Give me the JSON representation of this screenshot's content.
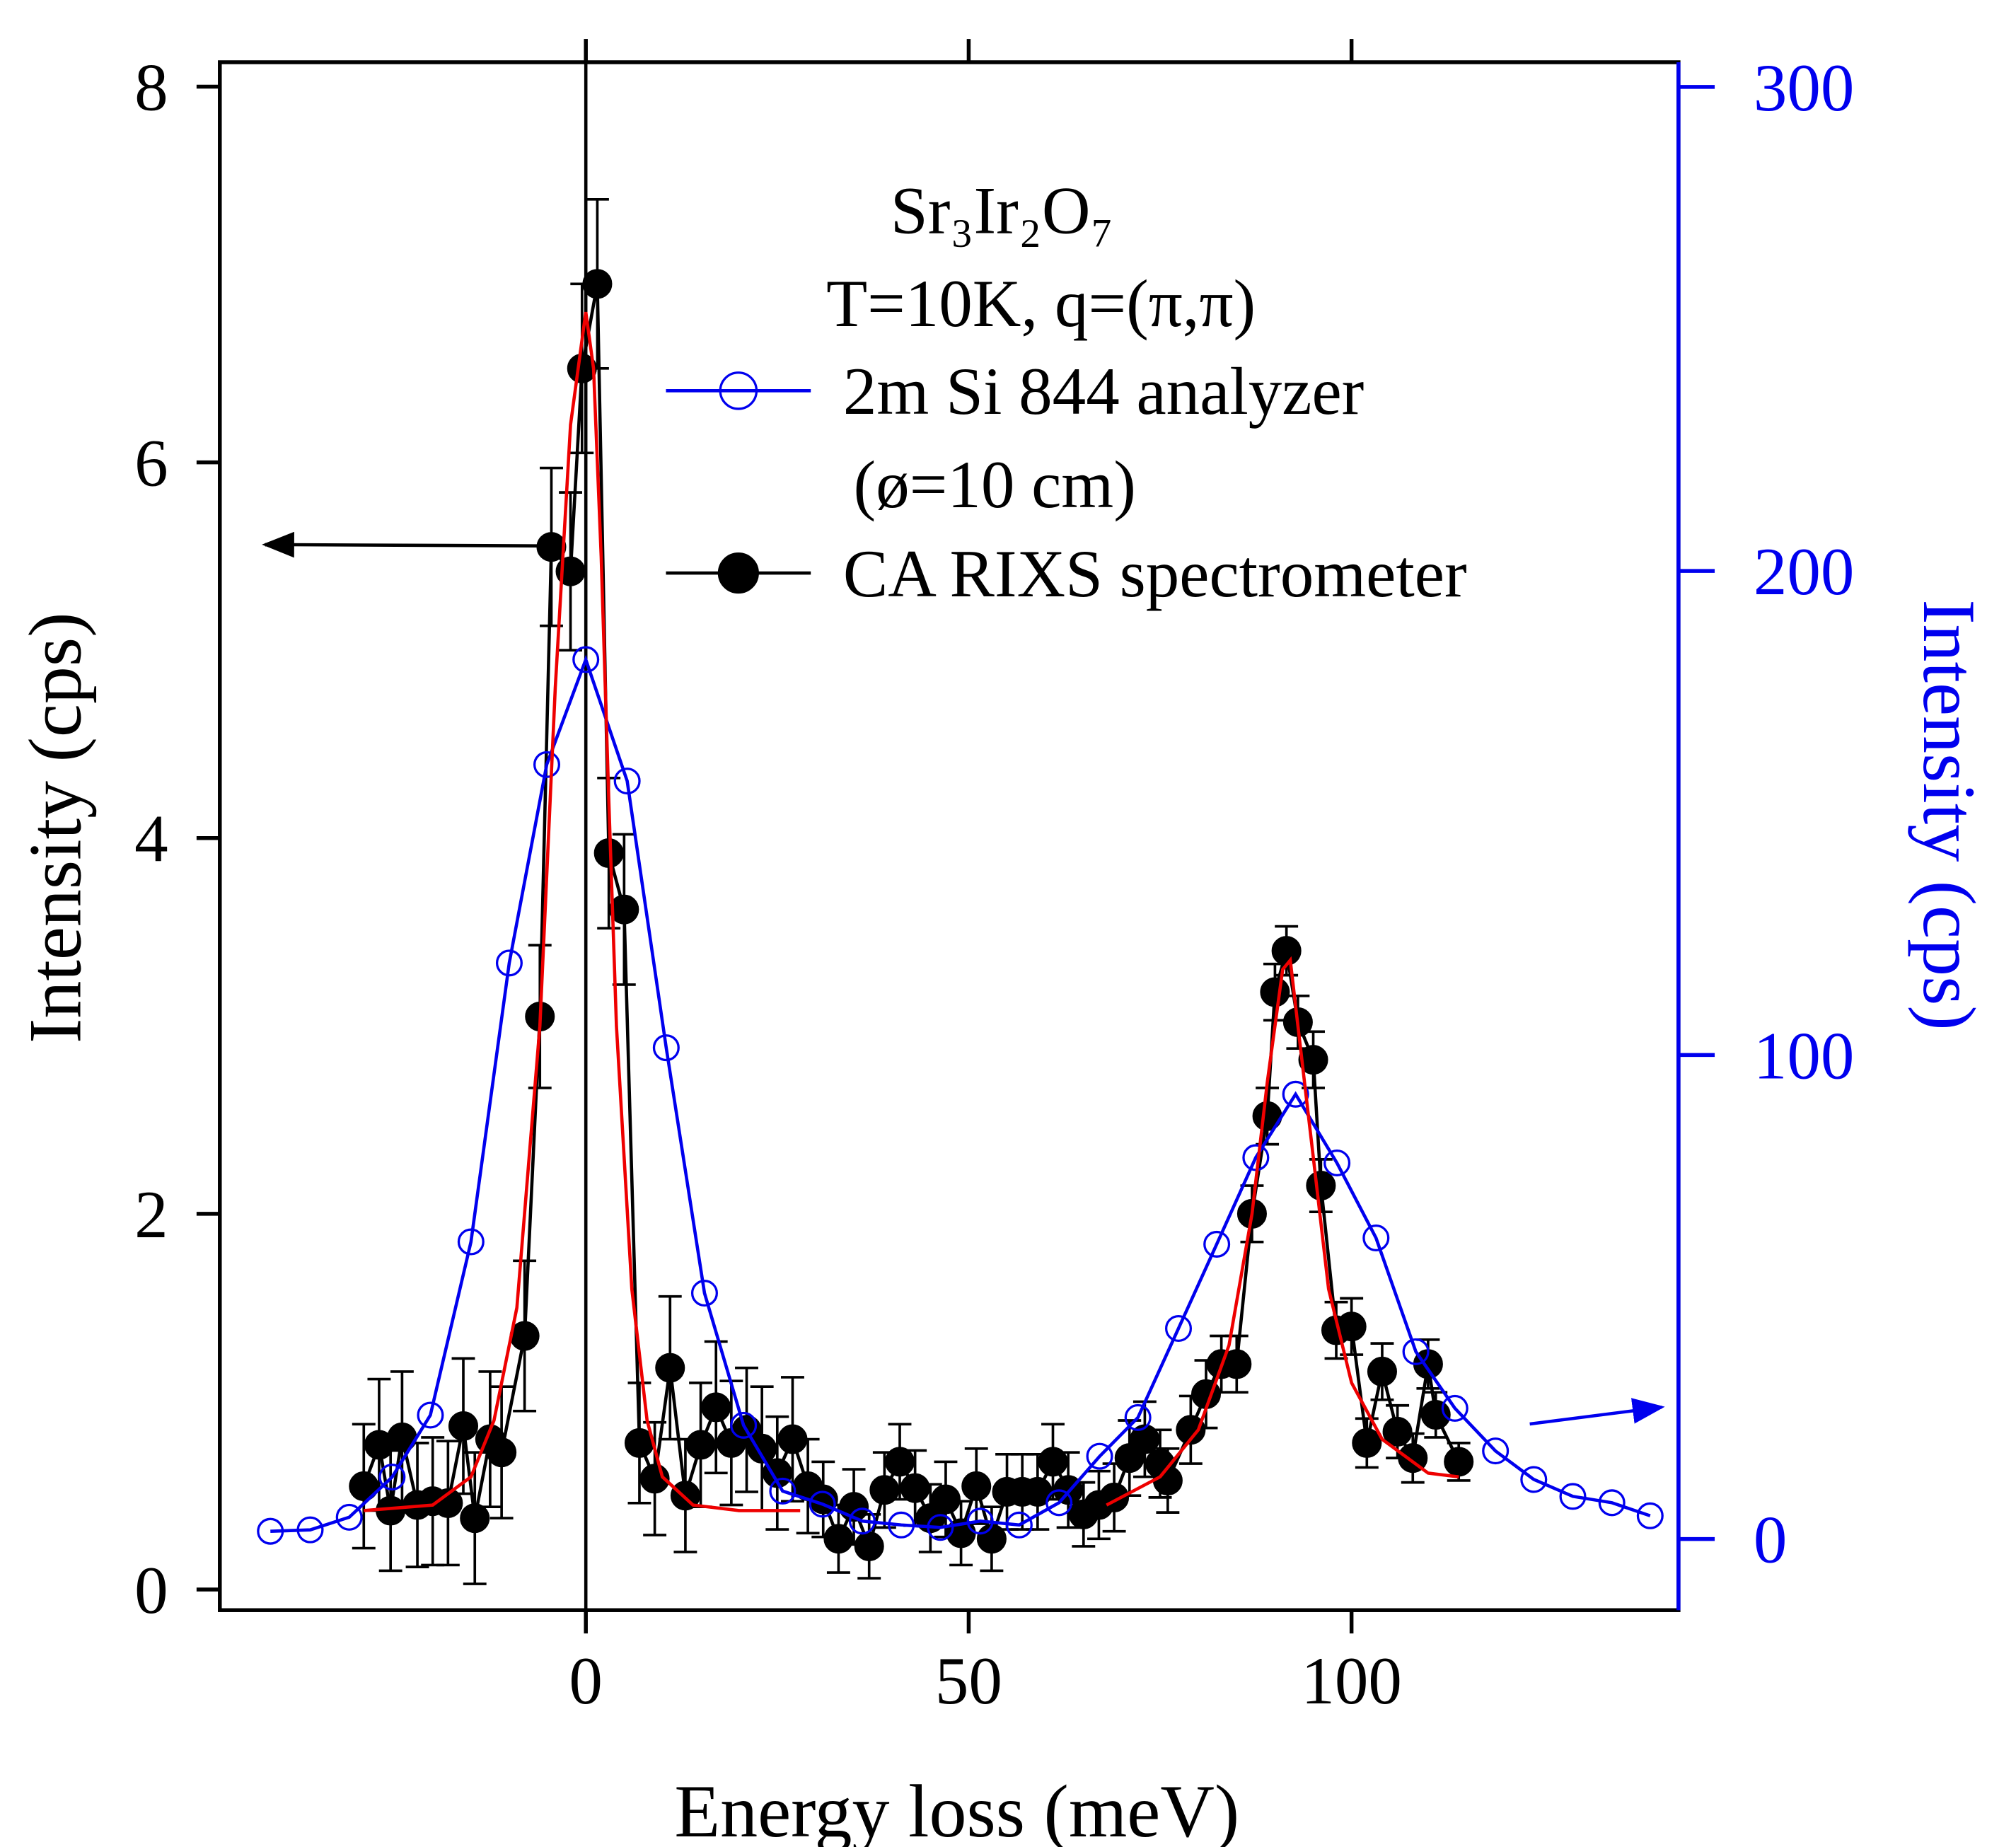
{
  "chart_data": {
    "type": "line",
    "title": "Sr₃Ir₂O₇",
    "subtitle": "T=10K, q=(π,π)",
    "xlabel": "Energy loss (meV)",
    "ylabel": "Intensity (cps)",
    "y2label": "Intensity (cps)",
    "xlim": [
      -47.8,
      142.7
    ],
    "ylim": [
      -0.11,
      8.13
    ],
    "y2lim": [
      -14.7,
      305.1
    ],
    "xticks": [
      0,
      50,
      100
    ],
    "yticks": [
      0,
      2,
      4,
      6,
      8
    ],
    "y2ticks": [
      0,
      100,
      200,
      300
    ],
    "vlines": [
      0
    ],
    "annotations": [
      "(ø=10 cm)"
    ],
    "series": [
      {
        "name": "2m Si 844 analyzer",
        "color": "#0000ee",
        "axis": "y2",
        "marker": "open",
        "x": [
          -41.2,
          -36,
          -30.9,
          -25.3,
          -20.3,
          -15,
          -10,
          -5.1,
          0,
          5.4,
          10.5,
          15.5,
          20.6,
          25.7,
          30.9,
          36.1,
          41.2,
          46.3,
          51.5,
          56.6,
          61.8,
          67.1,
          72.1,
          77.4,
          82.4,
          87.5,
          92.7,
          98.1,
          103.2,
          108.4,
          113.5,
          118.8,
          123.8,
          128.9,
          134,
          139
        ],
        "values": [
          1.6,
          1.9,
          4.5,
          12.8,
          25.6,
          61.4,
          119,
          160,
          181.7,
          156.6,
          101.5,
          50.8,
          23.5,
          9.9,
          7.2,
          3.7,
          2.9,
          2.4,
          3.7,
          2.9,
          7.5,
          17.1,
          25.1,
          43.5,
          60.9,
          78.8,
          91.9,
          77.7,
          62.2,
          38.7,
          27.0,
          18.2,
          12.3,
          8.8,
          7.5,
          4.8
        ]
      },
      {
        "name": "CA RIXS spectrometer",
        "color": "#000000",
        "marker": "filled",
        "x": [
          -29,
          -27,
          -25.5,
          -24,
          -22,
          -20,
          -18,
          -16,
          -14.5,
          -12.5,
          -11,
          -8,
          -6,
          -4.5,
          -2,
          -0.5,
          1.5,
          3,
          5,
          7,
          9,
          11,
          13,
          15,
          17,
          19,
          21,
          23,
          25,
          27,
          29,
          31,
          33,
          35,
          37,
          39,
          41,
          43,
          45,
          47,
          49,
          51,
          53,
          55,
          57,
          59,
          61,
          63,
          65,
          67,
          69,
          71,
          73,
          75,
          76,
          79,
          81,
          83,
          85,
          87,
          89,
          90,
          91.5,
          93,
          95,
          96,
          98,
          100,
          102,
          104,
          106,
          108,
          110,
          111,
          114
        ],
        "values": [
          0.55,
          0.77,
          0.42,
          0.81,
          0.45,
          0.47,
          0.46,
          0.87,
          0.38,
          0.8,
          0.73,
          1.35,
          3.05,
          5.55,
          5.42,
          6.5,
          6.95,
          3.92,
          3.62,
          0.78,
          0.59,
          1.18,
          0.5,
          0.77,
          0.97,
          0.78,
          0.85,
          0.75,
          0.62,
          0.8,
          0.55,
          0.48,
          0.27,
          0.44,
          0.23,
          0.53,
          0.68,
          0.54,
          0.38,
          0.48,
          0.3,
          0.55,
          0.27,
          0.52,
          0.52,
          0.52,
          0.68,
          0.53,
          0.4,
          0.45,
          0.49,
          0.7,
          0.8,
          0.67,
          0.58,
          0.85,
          1.04,
          1.2,
          1.2,
          2.0,
          2.52,
          3.18,
          3.4,
          3.02,
          2.82,
          2.15,
          1.38,
          1.4,
          0.78,
          1.16,
          0.84,
          0.7,
          1.2,
          0.93,
          0.68
        ],
        "errors": [
          0.33,
          0.35,
          0.32,
          0.35,
          0.33,
          0.34,
          0.33,
          0.36,
          0.35,
          0.36,
          0.35,
          0.4,
          0.38,
          0.42,
          0.42,
          0.45,
          0.45,
          0.4,
          0.4,
          0.32,
          0.3,
          0.38,
          0.3,
          0.33,
          0.35,
          0.33,
          0.33,
          0.33,
          0.3,
          0.33,
          0.25,
          0.2,
          0.18,
          0.2,
          0.17,
          0.2,
          0.2,
          0.2,
          0.18,
          0.2,
          0.17,
          0.2,
          0.17,
          0.2,
          0.2,
          0.2,
          0.2,
          0.2,
          0.17,
          0.18,
          0.18,
          0.2,
          0.2,
          0.18,
          0.17,
          0.18,
          0.18,
          0.15,
          0.15,
          0.15,
          0.15,
          0.15,
          0.13,
          0.14,
          0.15,
          0.14,
          0.15,
          0.15,
          0.13,
          0.15,
          0.14,
          0.13,
          0.13,
          0.12,
          0.1
        ]
      },
      {
        "color": "#ee0000",
        "marker": "none",
        "x": [
          -29,
          -20,
          -15,
          -12,
          -9,
          -6,
          -4,
          -2,
          0,
          1,
          2,
          3,
          4,
          6,
          8,
          10,
          14,
          20,
          28,
          null,
          68,
          75,
          80,
          84,
          87,
          89,
          91,
          92,
          93,
          95,
          97,
          100,
          104,
          110,
          114
        ],
        "values": [
          0.42,
          0.45,
          0.6,
          0.9,
          1.5,
          3.0,
          4.8,
          6.2,
          6.8,
          6.5,
          5.5,
          4.2,
          3.0,
          1.6,
          0.9,
          0.6,
          0.45,
          0.42,
          0.42,
          null,
          0.45,
          0.6,
          0.85,
          1.3,
          2.0,
          2.7,
          3.3,
          3.35,
          3.0,
          2.3,
          1.6,
          1.1,
          0.8,
          0.62,
          0.6
        ]
      }
    ]
  }
}
